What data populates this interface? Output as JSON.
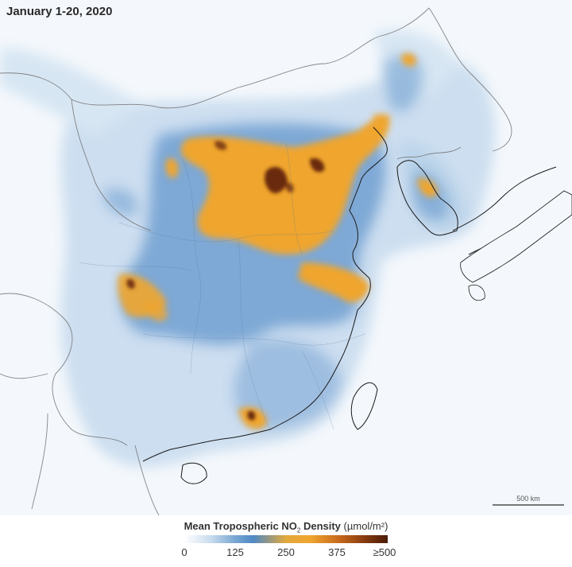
{
  "title": "January 1-20, 2020",
  "scale_label": "500 km",
  "legend": {
    "title_bold": "Mean Tropospheric NO",
    "title_sub": "2",
    "title_bold_end": " Density",
    "unit": "(µmol/m²)",
    "ticks": [
      "0",
      "125",
      "250",
      "375",
      "≥500"
    ],
    "colors": [
      "#ffffff",
      "#78a6d3",
      "#efa52e",
      "#c86a1d",
      "#4a1b06"
    ]
  },
  "colors": {
    "background": "#eaf2f9",
    "low": "#c9dcee",
    "mid": "#5b8fc6",
    "high": "#efa52e",
    "very_high": "#6b2a0a",
    "border": "#6a6a6a",
    "coast": "#1a1a1a"
  }
}
